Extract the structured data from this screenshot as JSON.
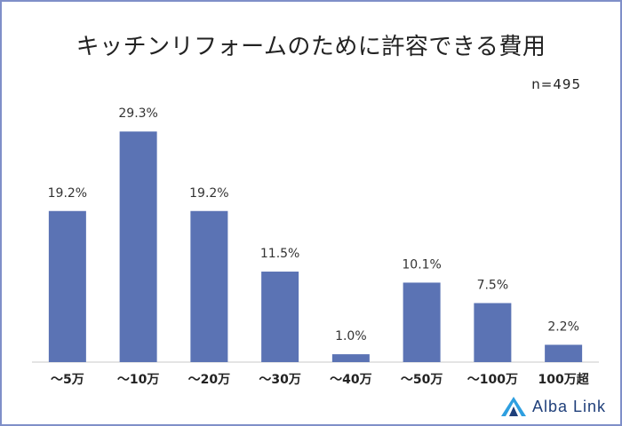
{
  "chart_data": {
    "type": "bar",
    "title": "キッチンリフォームのために許容できる費用",
    "sample_size": "n=495",
    "categories": [
      "～5万",
      "～10万",
      "～20万",
      "～30万",
      "～40万",
      "～50万",
      "～100万",
      "100万超"
    ],
    "values": [
      19.2,
      29.3,
      19.2,
      11.5,
      1.0,
      10.1,
      7.5,
      2.2
    ],
    "value_labels": [
      "19.2%",
      "29.3%",
      "19.2%",
      "11.5%",
      "1.0%",
      "10.1%",
      "7.5%",
      "2.2%"
    ],
    "xlabel": "",
    "ylabel": "",
    "ylim": [
      0,
      30
    ],
    "grid": false,
    "bar_color": "#5b73b4",
    "unit": "%"
  },
  "logo": {
    "text": "Alba Link",
    "icon": "alba-link-logo-icon"
  },
  "colors": {
    "border": "#7f8fc8",
    "bar": "#5b73b4",
    "logo_text": "#1f3f7a",
    "logo_icon": "#2e9fe0"
  }
}
